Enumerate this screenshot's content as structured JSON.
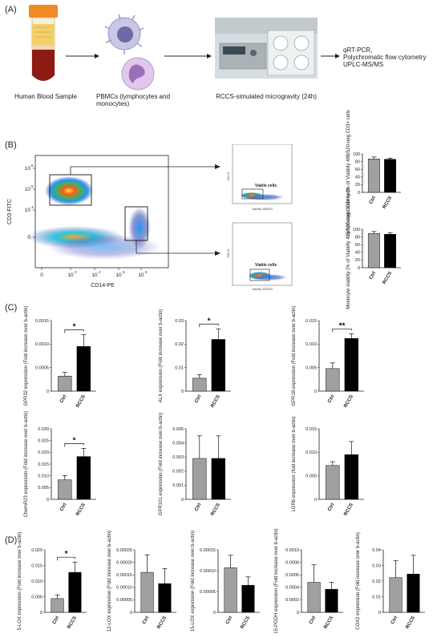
{
  "panels": {
    "A": "(A)",
    "B": "(B)",
    "C": "(C)",
    "D": "(D)"
  },
  "workflow": {
    "blood_caption": "Human Blood Sample",
    "pbmc_caption": "PBMCs (lymphocytes and monocytes)",
    "rccs_caption": "RCCS-simulated microgravity (24h)",
    "outputs": [
      "qRT-PCR,",
      "Polychromatic flow cytometry",
      "UPLC-MS/MS"
    ]
  },
  "flow": {
    "main_y_label": "CD3-FITC",
    "main_x_label": "CD14-PE",
    "main_y_ticks": [
      "10",
      "10",
      "10",
      "0"
    ],
    "main_y_exps": [
      "6",
      "5",
      "4",
      "3"
    ],
    "main_x_ticks": [
      "0",
      "10",
      "10",
      "10",
      "10"
    ],
    "main_x_exps": [
      "",
      "3",
      "4",
      "5",
      "6"
    ],
    "gate_top_label": "Viable cells",
    "gate_bottom_label": "Viable cells",
    "small_y_label": "SSC-H",
    "top_x_label": "Viability 488/520",
    "bottom_x_label": "Viability 405/520"
  },
  "colors": {
    "ctrl": "#a0a0a0",
    "rccs": "#000000",
    "axis": "#222222"
  },
  "chart_data": [
    {
      "id": "b_lymph",
      "type": "bar",
      "categories": [
        "Ctrl",
        "RCCS"
      ],
      "values": [
        87,
        86
      ],
      "errors": [
        5,
        3
      ],
      "ylabel": "Lymphocyte viability (% of Viability 488/520-neg CD3+ cells",
      "ylim": [
        0,
        100
      ],
      "yticks": [
        "0",
        "20",
        "40",
        "60",
        "80",
        "100"
      ],
      "significance": ""
    },
    {
      "id": "b_mono",
      "type": "bar",
      "categories": [
        "Ctrl",
        "RCCS"
      ],
      "values": [
        89,
        87
      ],
      "errors": [
        5,
        4
      ],
      "ylabel": "Monocyte viability (% of Viability 405/520-neg CD3+ cells",
      "ylim": [
        0,
        100
      ],
      "yticks": [
        "0",
        "20",
        "40",
        "60",
        "80",
        "100"
      ],
      "significance": ""
    },
    {
      "id": "c_gpr32",
      "type": "bar",
      "categories": [
        "Ctrl",
        "RCCS"
      ],
      "values": [
        0.00032,
        0.00095
      ],
      "errors": [
        8e-05,
        0.00025
      ],
      "ylabel": "GPR32 expression (Fold increase over b-actin)",
      "ylim": [
        0,
        0.0015
      ],
      "yticks": [
        "0",
        "0.0005",
        "0.0010",
        "0.0015"
      ],
      "significance": "*"
    },
    {
      "id": "c_alx",
      "type": "bar",
      "categories": [
        "Ctrl",
        "RCCS"
      ],
      "values": [
        0.0055,
        0.022
      ],
      "errors": [
        0.0015,
        0.0045
      ],
      "ylabel": "ALX expression (Fold increase over b-actin)",
      "ylim": [
        0,
        0.03
      ],
      "yticks": [
        "0",
        "0.01",
        "0.02",
        "0.03"
      ],
      "significance": "*"
    },
    {
      "id": "c_gpr18",
      "type": "bar",
      "categories": [
        "Ctrl",
        "RCCS"
      ],
      "values": [
        0.0048,
        0.0112
      ],
      "errors": [
        0.0012,
        0.001
      ],
      "ylabel": "GPR18 expression (Fold increase over b-actin)",
      "ylim": [
        0,
        0.015
      ],
      "yticks": [
        "0",
        "0.005",
        "0.010",
        "0.015"
      ],
      "significance": "**"
    },
    {
      "id": "c_chemr23",
      "type": "bar",
      "categories": [
        "Ctrl",
        "RCCS"
      ],
      "values": [
        0.0083,
        0.0182
      ],
      "errors": [
        0.0018,
        0.0035
      ],
      "ylabel": "ChemR23 expression (Fold increase over b-actin)",
      "ylim": [
        0,
        0.03
      ],
      "yticks": [
        "0",
        "0.005",
        "0.010",
        "0.015",
        "0.020",
        "0.025",
        "0.030"
      ],
      "significance": "*"
    },
    {
      "id": "c_gpr101",
      "type": "bar",
      "categories": [
        "Ctrl",
        "RCCS"
      ],
      "values": [
        0.0029,
        0.0029
      ],
      "errors": [
        0.0016,
        0.0016
      ],
      "ylabel": "GPR101 expression (Fold increase over b-actin)",
      "ylim": [
        0,
        0.005
      ],
      "yticks": [
        "0",
        "0.001",
        "0.002",
        "0.003",
        "0.004",
        "0.005"
      ],
      "significance": ""
    },
    {
      "id": "c_lgr6",
      "type": "bar",
      "categories": [
        "Ctrl",
        "RCCS"
      ],
      "values": [
        0.0072,
        0.0095
      ],
      "errors": [
        0.0008,
        0.0028
      ],
      "ylabel": "LGR6 expression (fold increase over b-actin)",
      "ylim": [
        0,
        0.015
      ],
      "yticks": [
        "0",
        "0.005",
        "0.010",
        "0.015"
      ],
      "significance": ""
    },
    {
      "id": "d_5lox",
      "type": "bar",
      "categories": [
        "Ctrl",
        "RCCS"
      ],
      "values": [
        0.0044,
        0.0128
      ],
      "errors": [
        0.0012,
        0.0033
      ],
      "ylabel": "5-LOX expression (Fold increase over b-actin)",
      "ylim": [
        0,
        0.02
      ],
      "yticks": [
        "0",
        "0.005",
        "0.010",
        "0.015",
        "0.020"
      ],
      "significance": "*"
    },
    {
      "id": "d_12lox",
      "type": "bar",
      "categories": [
        "Ctrl",
        "RCCS"
      ],
      "values": [
        0.00016,
        0.000115
      ],
      "errors": [
        7e-05,
        6e-05
      ],
      "ylabel": "12-LOX expression (Fold increase over b-actin)",
      "ylim": [
        0,
        0.00025
      ],
      "yticks": [
        "0",
        "0.00005",
        "0.00010",
        "0.00015",
        "0.00020",
        "0.00025"
      ],
      "significance": ""
    },
    {
      "id": "d_15lox",
      "type": "bar",
      "categories": [
        "Ctrl",
        "RCCS"
      ],
      "values": [
        0.000107,
        6.5e-05
      ],
      "errors": [
        3e-05,
        2e-05
      ],
      "ylabel": "15-LOX expression (Fold increase over b-actin)",
      "ylim": [
        0,
        0.00015
      ],
      "yticks": [
        "0",
        "0.00005",
        "0.00010",
        "0.00015"
      ],
      "significance": ""
    },
    {
      "id": "d_15pgdh",
      "type": "bar",
      "categories": [
        "Ctrl",
        "RCCS"
      ],
      "values": [
        0.00048,
        0.00037
      ],
      "errors": [
        0.00028,
        0.00011
      ],
      "ylabel": "15-PGDH expression (Fold increase over b-actin)",
      "ylim": [
        0,
        0.001
      ],
      "yticks": [
        "0",
        "0.0002",
        "0.0004",
        "0.0006",
        "0.0008",
        "0.0010"
      ],
      "significance": ""
    },
    {
      "id": "d_cox2",
      "type": "bar",
      "categories": [
        "Ctrl",
        "RCCS"
      ],
      "values": [
        0.0222,
        0.0245
      ],
      "errors": [
        0.011,
        0.012
      ],
      "ylabel": "COX2 expression (Fold increase over b-actin)",
      "ylim": [
        0,
        0.04
      ],
      "yticks": [
        "0",
        "0.01",
        "0.02",
        "0.03",
        "0.04"
      ],
      "significance": ""
    }
  ]
}
